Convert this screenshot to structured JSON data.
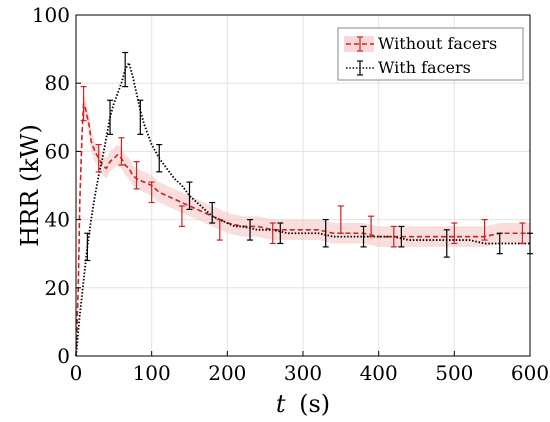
{
  "chart_data": {
    "type": "line",
    "xlabel_var": "t",
    "xlabel_unit": "(s)",
    "ylabel": "HRR (kW)",
    "xlim": [
      0,
      600
    ],
    "ylim": [
      0,
      100
    ],
    "x_ticks": [
      "0",
      "100",
      "200",
      "300",
      "400",
      "500",
      "600"
    ],
    "y_ticks": [
      "0",
      "20",
      "40",
      "60",
      "80",
      "100"
    ],
    "grid": true,
    "legend_position": "top-right",
    "series": [
      {
        "name": "Without facers",
        "color": "#cc2222",
        "band_color": "#f7c7c7",
        "line_style": "dashed",
        "x": [
          0,
          3,
          5,
          8,
          10,
          12,
          15,
          18,
          20,
          25,
          30,
          35,
          40,
          45,
          50,
          55,
          60,
          65,
          70,
          75,
          80,
          90,
          100,
          110,
          120,
          130,
          140,
          150,
          160,
          170,
          180,
          190,
          200,
          220,
          240,
          260,
          280,
          300,
          320,
          340,
          360,
          380,
          400,
          420,
          440,
          460,
          480,
          500,
          520,
          540,
          560,
          580,
          600
        ],
        "y": [
          0,
          20,
          45,
          65,
          74,
          73,
          70,
          67,
          63,
          60,
          58,
          56,
          55,
          57,
          58,
          59,
          58,
          56,
          55,
          53,
          52,
          51,
          50,
          48,
          47,
          46,
          45,
          44,
          43,
          42,
          41,
          40,
          39,
          38,
          38,
          37,
          37,
          37,
          37,
          36,
          36,
          36,
          35,
          35,
          35,
          35,
          35,
          35,
          35,
          35,
          36,
          36,
          36
        ],
        "err_x": [
          10,
          30,
          60,
          80,
          100,
          140,
          190,
          260,
          350,
          390,
          420,
          500,
          540,
          590
        ],
        "err_y": [
          74,
          58,
          60,
          53,
          48,
          41,
          37,
          36,
          40,
          38,
          35,
          36,
          37,
          36
        ],
        "err_half": [
          5,
          4,
          4,
          4,
          3,
          3,
          3,
          3,
          4,
          3,
          3,
          3,
          3,
          3
        ]
      },
      {
        "name": "With facers",
        "color": "#000000",
        "line_style": "dotted",
        "x": [
          0,
          5,
          10,
          15,
          20,
          25,
          30,
          35,
          40,
          45,
          50,
          55,
          60,
          65,
          70,
          75,
          80,
          85,
          90,
          95,
          100,
          110,
          120,
          130,
          140,
          150,
          160,
          170,
          180,
          190,
          200,
          210,
          220,
          240,
          260,
          280,
          300,
          320,
          340,
          360,
          380,
          400,
          420,
          440,
          460,
          480,
          500,
          520,
          540,
          560,
          580,
          600
        ],
        "y": [
          0,
          12,
          22,
          32,
          40,
          47,
          53,
          58,
          64,
          70,
          74,
          77,
          80,
          84,
          86,
          82,
          77,
          72,
          68,
          65,
          62,
          58,
          55,
          52,
          50,
          47,
          45,
          43,
          41,
          40,
          39,
          38,
          38,
          37,
          37,
          36,
          36,
          36,
          35,
          35,
          35,
          35,
          35,
          34,
          34,
          34,
          34,
          34,
          33,
          33,
          33,
          33
        ],
        "err_x": [
          15,
          45,
          65,
          85,
          110,
          150,
          180,
          230,
          270,
          330,
          380,
          430,
          490,
          560,
          600
        ],
        "err_y": [
          32,
          70,
          84,
          70,
          58,
          47,
          42,
          37,
          36,
          36,
          35,
          35,
          33,
          33,
          33
        ],
        "err_half": [
          4,
          5,
          5,
          5,
          4,
          4,
          3,
          3,
          3,
          4,
          3,
          3,
          4,
          3,
          3
        ]
      }
    ]
  }
}
